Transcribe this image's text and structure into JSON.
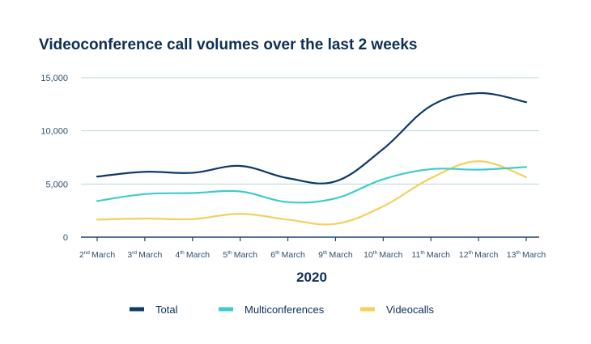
{
  "chart_data": {
    "type": "line",
    "title": "Videoconference call volumes over the last 2 weeks",
    "xlabel": "2020",
    "ylabel": "",
    "ylim": [
      0,
      15000
    ],
    "yticks": [
      0,
      5000,
      10000,
      15000
    ],
    "ytick_labels": [
      "0",
      "5,000",
      "10,000",
      "15,000"
    ],
    "categories": [
      {
        "day": "2",
        "suffix": "nd",
        "month": "March"
      },
      {
        "day": "3",
        "suffix": "rd",
        "month": "March"
      },
      {
        "day": "4",
        "suffix": "th",
        "month": "March"
      },
      {
        "day": "5",
        "suffix": "th",
        "month": "March"
      },
      {
        "day": "6",
        "suffix": "th",
        "month": "March"
      },
      {
        "day": "9",
        "suffix": "th",
        "month": "March"
      },
      {
        "day": "10",
        "suffix": "th",
        "month": "March"
      },
      {
        "day": "11",
        "suffix": "th",
        "month": "March"
      },
      {
        "day": "12",
        "suffix": "th",
        "month": "March"
      },
      {
        "day": "13",
        "suffix": "th",
        "month": "March"
      }
    ],
    "grid": true,
    "legend_position": "bottom",
    "series": [
      {
        "name": "Total",
        "color": "#0d3a66",
        "values": [
          5700,
          6150,
          6050,
          6700,
          5550,
          5250,
          8300,
          12350,
          13550,
          12700
        ]
      },
      {
        "name": "Multiconferences",
        "color": "#3ccccc",
        "values": [
          3400,
          4050,
          4150,
          4300,
          3300,
          3650,
          5450,
          6400,
          6350,
          6600
        ]
      },
      {
        "name": "Videocalls",
        "color": "#f6cf5c",
        "values": [
          1650,
          1750,
          1700,
          2200,
          1650,
          1250,
          2900,
          5550,
          7150,
          5650
        ]
      }
    ]
  }
}
